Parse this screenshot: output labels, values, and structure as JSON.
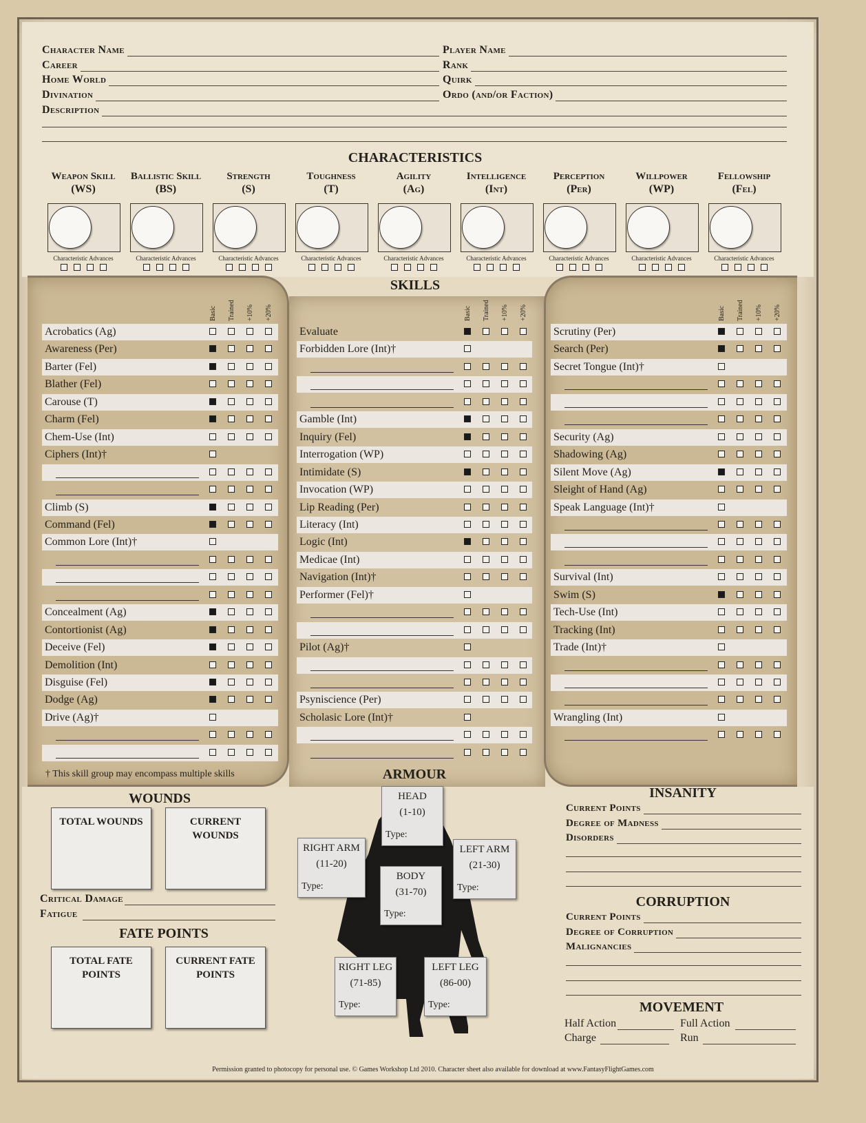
{
  "header": {
    "left_fields": [
      "Character Name",
      "Career",
      "Home World",
      "Divination",
      "Description"
    ],
    "right_fields": [
      "Player Name",
      "Rank",
      "Quirk",
      "Ordo (and/or Faction)"
    ]
  },
  "characteristics": {
    "title": "CHARACTERISTICS",
    "advances_label": "Characteristic Advances",
    "items": [
      {
        "name": "Weapon Skill",
        "abbr": "(WS)"
      },
      {
        "name": "Ballistic Skill",
        "abbr": "(BS)"
      },
      {
        "name": "Strength",
        "abbr": "(S)"
      },
      {
        "name": "Toughness",
        "abbr": "(T)"
      },
      {
        "name": "Agility",
        "abbr": "(Ag)"
      },
      {
        "name": "Intelligence",
        "abbr": "(Int)"
      },
      {
        "name": "Perception",
        "abbr": "(Per)"
      },
      {
        "name": "Willpower",
        "abbr": "(WP)"
      },
      {
        "name": "Fellowship",
        "abbr": "(Fel)"
      }
    ]
  },
  "skills": {
    "title": "SKILLS",
    "column_headers": [
      "Basic",
      "Trained",
      "+10%",
      "+20%"
    ],
    "footnote": "† This skill group may encompass multiple skills",
    "columns": [
      [
        {
          "label": "Acrobatics (Ag)",
          "checks": [
            0,
            0,
            0,
            0
          ]
        },
        {
          "label": "Awareness (Per)",
          "checks": [
            1,
            0,
            0,
            0
          ]
        },
        {
          "label": "Barter (Fel)",
          "checks": [
            1,
            0,
            0,
            0
          ]
        },
        {
          "label": "Blather (Fel)",
          "checks": [
            0,
            0,
            0,
            0
          ]
        },
        {
          "label": "Carouse (T)",
          "checks": [
            1,
            0,
            0,
            0
          ]
        },
        {
          "label": "Charm (Fel)",
          "checks": [
            1,
            0,
            0,
            0
          ]
        },
        {
          "label": "Chem-Use (Int)",
          "checks": [
            0,
            0,
            0,
            0
          ]
        },
        {
          "label": "Ciphers (Int)†",
          "checks": [
            0
          ]
        },
        {
          "label": "",
          "checks": [
            0,
            0,
            0,
            0
          ]
        },
        {
          "label": "",
          "checks": [
            0,
            0,
            0,
            0
          ]
        },
        {
          "label": "Climb (S)",
          "checks": [
            1,
            0,
            0,
            0
          ]
        },
        {
          "label": "Command (Fel)",
          "checks": [
            1,
            0,
            0,
            0
          ]
        },
        {
          "label": "Common Lore (Int)†",
          "checks": [
            0
          ]
        },
        {
          "label": "",
          "checks": [
            0,
            0,
            0,
            0
          ]
        },
        {
          "label": "",
          "checks": [
            0,
            0,
            0,
            0
          ]
        },
        {
          "label": "",
          "checks": [
            0,
            0,
            0,
            0
          ]
        },
        {
          "label": "Concealment (Ag)",
          "checks": [
            1,
            0,
            0,
            0
          ]
        },
        {
          "label": "Contortionist (Ag)",
          "checks": [
            1,
            0,
            0,
            0
          ]
        },
        {
          "label": "Deceive (Fel)",
          "checks": [
            1,
            0,
            0,
            0
          ]
        },
        {
          "label": "Demolition (Int)",
          "checks": [
            0,
            0,
            0,
            0
          ]
        },
        {
          "label": "Disguise (Fel)",
          "checks": [
            1,
            0,
            0,
            0
          ]
        },
        {
          "label": "Dodge (Ag)",
          "checks": [
            1,
            0,
            0,
            0
          ]
        },
        {
          "label": "Drive (Ag)†",
          "checks": [
            0
          ]
        },
        {
          "label": "",
          "checks": [
            0,
            0,
            0,
            0
          ]
        },
        {
          "label": "",
          "checks": [
            0,
            0,
            0,
            0
          ]
        }
      ],
      [
        {
          "label": "Evaluate",
          "checks": [
            1,
            0,
            0,
            0
          ]
        },
        {
          "label": "Forbidden Lore (Int)†",
          "checks": [
            0
          ]
        },
        {
          "label": "",
          "checks": [
            0,
            0,
            0,
            0
          ]
        },
        {
          "label": "",
          "checks": [
            0,
            0,
            0,
            0
          ]
        },
        {
          "label": "",
          "checks": [
            0,
            0,
            0,
            0
          ]
        },
        {
          "label": "Gamble (Int)",
          "checks": [
            1,
            0,
            0,
            0
          ]
        },
        {
          "label": "Inquiry (Fel)",
          "checks": [
            1,
            0,
            0,
            0
          ]
        },
        {
          "label": "Interrogation (WP)",
          "checks": [
            0,
            0,
            0,
            0
          ]
        },
        {
          "label": "Intimidate (S)",
          "checks": [
            1,
            0,
            0,
            0
          ]
        },
        {
          "label": "Invocation (WP)",
          "checks": [
            0,
            0,
            0,
            0
          ]
        },
        {
          "label": "Lip Reading (Per)",
          "checks": [
            0,
            0,
            0,
            0
          ]
        },
        {
          "label": "Literacy (Int)",
          "checks": [
            0,
            0,
            0,
            0
          ]
        },
        {
          "label": "Logic (Int)",
          "checks": [
            1,
            0,
            0,
            0
          ]
        },
        {
          "label": "Medicae (Int)",
          "checks": [
            0,
            0,
            0,
            0
          ]
        },
        {
          "label": "Navigation (Int)†",
          "checks": [
            0,
            0,
            0,
            0
          ]
        },
        {
          "label": "Performer (Fel)†",
          "checks": [
            0
          ]
        },
        {
          "label": "",
          "checks": [
            0,
            0,
            0,
            0
          ]
        },
        {
          "label": "",
          "checks": [
            0,
            0,
            0,
            0
          ]
        },
        {
          "label": "Pilot (Ag)†",
          "checks": [
            0
          ]
        },
        {
          "label": "",
          "checks": [
            0,
            0,
            0,
            0
          ]
        },
        {
          "label": "",
          "checks": [
            0,
            0,
            0,
            0
          ]
        },
        {
          "label": "Psyniscience (Per)",
          "checks": [
            0,
            0,
            0,
            0
          ]
        },
        {
          "label": "Scholasic Lore (Int)†",
          "checks": [
            0
          ]
        },
        {
          "label": "",
          "checks": [
            0,
            0,
            0,
            0
          ]
        },
        {
          "label": "",
          "checks": [
            0,
            0,
            0,
            0
          ]
        }
      ],
      [
        {
          "label": "Scrutiny (Per)",
          "checks": [
            1,
            0,
            0,
            0
          ]
        },
        {
          "label": "Search (Per)",
          "checks": [
            1,
            0,
            0,
            0
          ]
        },
        {
          "label": "Secret Tongue (Int)†",
          "checks": [
            0
          ]
        },
        {
          "label": "",
          "checks": [
            0,
            0,
            0,
            0
          ]
        },
        {
          "label": "",
          "checks": [
            0,
            0,
            0,
            0
          ]
        },
        {
          "label": "",
          "checks": [
            0,
            0,
            0,
            0
          ]
        },
        {
          "label": "Security (Ag)",
          "checks": [
            0,
            0,
            0,
            0
          ]
        },
        {
          "label": "Shadowing (Ag)",
          "checks": [
            0,
            0,
            0,
            0
          ]
        },
        {
          "label": "Silent Move (Ag)",
          "checks": [
            1,
            0,
            0,
            0
          ]
        },
        {
          "label": "Sleight of Hand (Ag)",
          "checks": [
            0,
            0,
            0,
            0
          ]
        },
        {
          "label": "Speak Language (Int)†",
          "checks": [
            0
          ]
        },
        {
          "label": "",
          "checks": [
            0,
            0,
            0,
            0
          ]
        },
        {
          "label": "",
          "checks": [
            0,
            0,
            0,
            0
          ]
        },
        {
          "label": "",
          "checks": [
            0,
            0,
            0,
            0
          ]
        },
        {
          "label": "Survival (Int)",
          "checks": [
            0,
            0,
            0,
            0
          ]
        },
        {
          "label": "Swim (S)",
          "checks": [
            1,
            0,
            0,
            0
          ]
        },
        {
          "label": "Tech-Use (Int)",
          "checks": [
            0,
            0,
            0,
            0
          ]
        },
        {
          "label": "Tracking (Int)",
          "checks": [
            0,
            0,
            0,
            0
          ]
        },
        {
          "label": "Trade (Int)†",
          "checks": [
            0
          ]
        },
        {
          "label": "",
          "checks": [
            0,
            0,
            0,
            0
          ]
        },
        {
          "label": "",
          "checks": [
            0,
            0,
            0,
            0
          ]
        },
        {
          "label": "",
          "checks": [
            0,
            0,
            0,
            0
          ]
        },
        {
          "label": "Wrangling (Int)",
          "checks": [
            0
          ]
        },
        {
          "label": "",
          "checks": [
            0,
            0,
            0,
            0
          ]
        }
      ]
    ]
  },
  "wounds": {
    "title": "WOUNDS",
    "total": "TOTAL WOUNDS",
    "current": "CURRENT WOUNDS",
    "critical": "Critical Damage",
    "fatigue": "Fatigue"
  },
  "fate": {
    "title": "FATE POINTS",
    "total": "TOTAL FATE POINTS",
    "current": "CURRENT FATE POINTS"
  },
  "armour": {
    "title": "ARMOUR",
    "type_label": "Type:",
    "locations": [
      {
        "name": "HEAD",
        "range": "(1-10)"
      },
      {
        "name": "RIGHT ARM",
        "range": "(11-20)"
      },
      {
        "name": "LEFT ARM",
        "range": "(21-30)"
      },
      {
        "name": "BODY",
        "range": "(31-70)"
      },
      {
        "name": "RIGHT LEG",
        "range": "(71-85)"
      },
      {
        "name": "LEFT LEG",
        "range": "(86-00)"
      }
    ]
  },
  "insanity": {
    "title": "INSANITY",
    "fields": [
      "Current Points",
      "Degree of Madness",
      "Disorders"
    ]
  },
  "corruption": {
    "title": "CORRUPTION",
    "fields": [
      "Current Points",
      "Degree of Corruption",
      "Malignancies"
    ]
  },
  "movement": {
    "title": "MOVEMENT",
    "half": "Half Action",
    "full": "Full Action",
    "charge": "Charge",
    "run": "Run"
  },
  "footer": "Permission granted to photocopy for personal use. © Games Workshop Ltd 2010. Character sheet also available for download at www.FantasyFlightGames.com"
}
